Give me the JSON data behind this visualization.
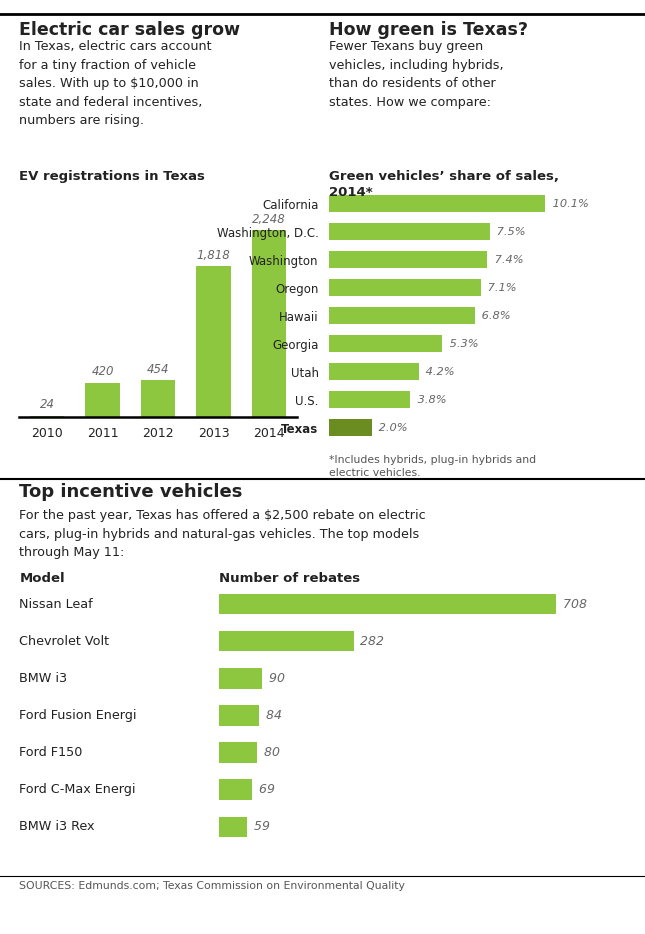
{
  "bg_color": "#ffffff",
  "text_color": "#222222",
  "green_light": "#8dc63f",
  "green_dark": "#6b8c21",
  "top_left_title": "Electric car sales grow",
  "top_left_body": "In Texas, electric cars account\nfor a tiny fraction of vehicle\nsales. With up to $10,000 in\nstate and federal incentives,\nnumbers are rising.",
  "ev_chart_title": "EV registrations in Texas",
  "ev_years": [
    "2010",
    "2011",
    "2012",
    "2013",
    "2014"
  ],
  "ev_values": [
    24,
    420,
    454,
    1818,
    2248
  ],
  "top_right_title": "How green is Texas?",
  "top_right_body": "Fewer Texans buy green\nvehicles, including hybrids,\nthan do residents of other\nstates. How we compare:",
  "green_chart_title": "Green vehicles' share of sales,\n2014*",
  "green_states": [
    "California",
    "Washington, D.C.",
    "Washington",
    "Oregon",
    "Hawaii",
    "Georgia",
    "Utah",
    "U.S.",
    "Texas"
  ],
  "green_values": [
    10.1,
    7.5,
    7.4,
    7.1,
    6.8,
    5.3,
    4.2,
    3.8,
    2.0
  ],
  "green_labels": [
    "10.1%",
    "7.5%",
    "7.4%",
    "7.1%",
    "6.8%",
    "5.3%",
    "4.2%",
    "3.8%",
    "2.0%"
  ],
  "green_footnote": "*Includes hybrids, plug-in hybrids and\nelectric vehicles.",
  "section2_title": "Top incentive vehicles",
  "section2_body": "For the past year, Texas has offered a $2,500 rebate on electric\ncars, plug-in hybrids and natural-gas vehicles. The top models\nthrough May 11:",
  "rebate_col1": "Model",
  "rebate_col2": "Number of rebates",
  "rebate_models": [
    "Nissan Leaf",
    "Chevrolet Volt",
    "BMW i3",
    "Ford Fusion Energi",
    "Ford F150",
    "Ford C-Max Energi",
    "BMW i3 Rex"
  ],
  "rebate_values": [
    708,
    282,
    90,
    84,
    80,
    69,
    59
  ],
  "sources": "SOURCES: Edmunds.com; Texas Commission on Environmental Quality"
}
